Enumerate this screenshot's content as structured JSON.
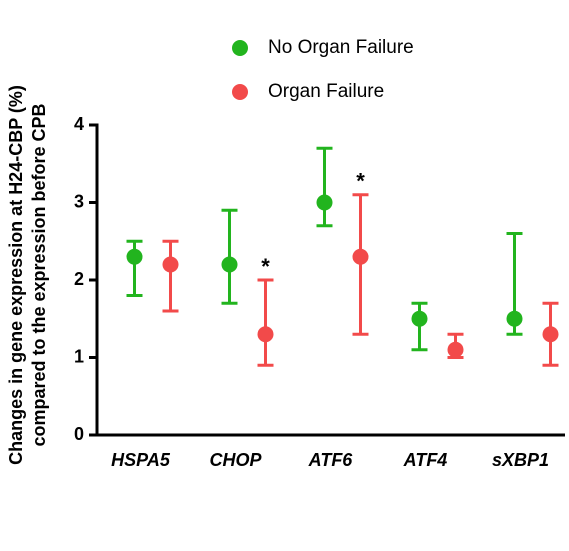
{
  "chart_data": {
    "type": "dot-errorbar",
    "ylabel": [
      "Changes in gene expression at H24-CBP (%)",
      "compared to the expression before CPB"
    ],
    "categories": [
      "HSPA5",
      "CHOP",
      "ATF6",
      "ATF4",
      "sXBP1"
    ],
    "series": [
      {
        "name": "No Organ Failure",
        "color": "#22b41e",
        "values": [
          2.3,
          2.2,
          3.0,
          1.5,
          1.5
        ],
        "lower": [
          1.8,
          1.7,
          2.7,
          1.1,
          1.3
        ],
        "upper": [
          2.5,
          2.9,
          3.7,
          1.7,
          2.6
        ]
      },
      {
        "name": "Organ Failure",
        "color": "#f24a4a",
        "values": [
          2.2,
          1.3,
          2.3,
          1.1,
          1.3
        ],
        "lower": [
          1.6,
          0.9,
          1.3,
          1.0,
          0.9
        ],
        "upper": [
          2.5,
          2.0,
          3.1,
          1.3,
          1.7
        ]
      }
    ],
    "annotations": [
      {
        "text": "*",
        "x": "CHOP",
        "series": "Organ Failure"
      },
      {
        "text": "*",
        "x": "ATF6",
        "series": "Organ Failure"
      }
    ],
    "ylim": [
      0,
      4
    ],
    "yticks": [
      0,
      1,
      2,
      3,
      4
    ],
    "legend": "top"
  }
}
